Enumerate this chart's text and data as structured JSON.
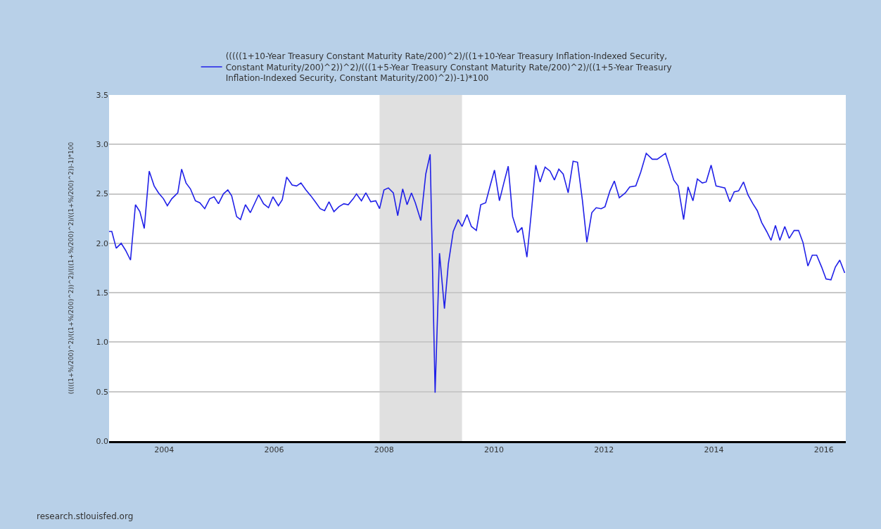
{
  "chart_data": {
    "type": "line",
    "ylabel": "(((((1+%/200)^2)/((1+%/200)^2))^2)/(((1+%/200)^2)/((1+%/200)^2))-1)*100",
    "x": [
      2003.0,
      2003.05,
      2003.13,
      2003.22,
      2003.3,
      2003.39,
      2003.48,
      2003.56,
      2003.64,
      2003.73,
      2003.82,
      2003.9,
      2003.99,
      2004.06,
      2004.14,
      2004.25,
      2004.32,
      2004.4,
      2004.48,
      2004.57,
      2004.65,
      2004.74,
      2004.83,
      2004.91,
      2004.99,
      2005.08,
      2005.16,
      2005.23,
      2005.32,
      2005.39,
      2005.48,
      2005.57,
      2005.72,
      2005.81,
      2005.9,
      2005.98,
      2006.08,
      2006.15,
      2006.23,
      2006.33,
      2006.41,
      2006.49,
      2006.58,
      2006.67,
      2006.75,
      2006.84,
      2006.92,
      2007.0,
      2007.09,
      2007.18,
      2007.27,
      2007.35,
      2007.44,
      2007.5,
      2007.59,
      2007.67,
      2007.76,
      2007.85,
      2007.92,
      2008.0,
      2008.08,
      2008.17,
      2008.25,
      2008.34,
      2008.42,
      2008.5,
      2008.57,
      2008.67,
      2008.76,
      2008.84,
      2008.93,
      2009.01,
      2009.1,
      2009.17,
      2009.26,
      2009.35,
      2009.42,
      2009.51,
      2009.59,
      2009.68,
      2009.76,
      2009.85,
      2009.94,
      2010.01,
      2010.1,
      2010.18,
      2010.26,
      2010.34,
      2010.43,
      2010.51,
      2010.6,
      2010.68,
      2010.76,
      2010.84,
      2010.93,
      2011.02,
      2011.1,
      2011.18,
      2011.26,
      2011.35,
      2011.44,
      2011.52,
      2011.61,
      2011.69,
      2011.78,
      2011.86,
      2011.95,
      2012.02,
      2012.11,
      2012.19,
      2012.28,
      2012.39,
      2012.47,
      2012.58,
      2012.67,
      2012.77,
      2012.88,
      2012.97,
      2013.12,
      2013.2,
      2013.27,
      2013.35,
      2013.45,
      2013.53,
      2013.62,
      2013.7,
      2013.79,
      2013.86,
      2013.95,
      2014.04,
      2014.12,
      2014.2,
      2014.29,
      2014.37,
      2014.45,
      2014.54,
      2014.62,
      2014.71,
      2014.79,
      2014.87,
      2014.96,
      2015.04,
      2015.12,
      2015.2,
      2015.29,
      2015.37,
      2015.46,
      2015.54,
      2015.62,
      2015.71,
      2015.79,
      2015.87,
      2015.96,
      2016.04,
      2016.13,
      2016.21,
      2016.29,
      2016.38
    ],
    "series": [
      {
        "name": "(((((1+10-Year Treasury Constant Maturity Rate/200)^2)/((1+10-Year Treasury Inflation-Indexed Security, Constant Maturity/200)^2))^2)/(((1+5-Year Treasury Constant Maturity Rate/200)^2)/((1+5-Year Treasury Inflation-Indexed Security, Constant Maturity/200)^2))-1)*100",
        "color": "#2020e8",
        "values": [
          2.12,
          2.12,
          1.95,
          2.0,
          1.93,
          1.83,
          2.39,
          2.32,
          2.15,
          2.73,
          2.58,
          2.51,
          2.45,
          2.38,
          2.45,
          2.51,
          2.75,
          2.61,
          2.55,
          2.43,
          2.41,
          2.35,
          2.45,
          2.47,
          2.4,
          2.5,
          2.54,
          2.48,
          2.27,
          2.24,
          2.39,
          2.31,
          2.49,
          2.4,
          2.36,
          2.47,
          2.38,
          2.44,
          2.67,
          2.59,
          2.58,
          2.61,
          2.54,
          2.48,
          2.42,
          2.35,
          2.33,
          2.42,
          2.32,
          2.37,
          2.4,
          2.39,
          2.45,
          2.5,
          2.43,
          2.51,
          2.42,
          2.43,
          2.35,
          2.54,
          2.56,
          2.51,
          2.28,
          2.55,
          2.39,
          2.51,
          2.41,
          2.23,
          2.7,
          2.9,
          0.49,
          1.9,
          1.34,
          1.79,
          2.12,
          2.24,
          2.17,
          2.29,
          2.17,
          2.13,
          2.39,
          2.41,
          2.6,
          2.74,
          2.43,
          2.61,
          2.78,
          2.27,
          2.11,
          2.16,
          1.86,
          2.31,
          2.79,
          2.62,
          2.77,
          2.73,
          2.64,
          2.75,
          2.7,
          2.51,
          2.83,
          2.82,
          2.43,
          2.01,
          2.31,
          2.36,
          2.35,
          2.37,
          2.53,
          2.63,
          2.46,
          2.51,
          2.57,
          2.58,
          2.72,
          2.91,
          2.85,
          2.85,
          2.91,
          2.77,
          2.64,
          2.58,
          2.24,
          2.57,
          2.43,
          2.65,
          2.61,
          2.62,
          2.79,
          2.58,
          2.57,
          2.56,
          2.42,
          2.52,
          2.53,
          2.62,
          2.49,
          2.4,
          2.33,
          2.21,
          2.12,
          2.03,
          2.18,
          2.03,
          2.17,
          2.05,
          2.13,
          2.13,
          2.01,
          1.77,
          1.88,
          1.88,
          1.76,
          1.64,
          1.63,
          1.76,
          1.83,
          1.7
        ]
      }
    ],
    "xlim": [
      2003.0,
      2016.4
    ],
    "xticks": [
      2004,
      2006,
      2008,
      2010,
      2012,
      2014,
      2016
    ],
    "ylim": [
      0,
      3.5
    ],
    "yticks": [
      {
        "value": 0,
        "label": "0.0"
      },
      0.5,
      {
        "value": 1,
        "label": "1.0"
      },
      1.5,
      {
        "value": 2,
        "label": "2.0"
      },
      2.5,
      {
        "value": 3,
        "label": "3.0"
      },
      3.5
    ],
    "bands": [
      {
        "axis": "x",
        "from": 2007.92,
        "to": 2009.42,
        "color": "#e0e0e0"
      }
    ],
    "annotations": [
      "research.stlouisfed.org"
    ],
    "grid": "y",
    "legend": "top",
    "marker": "none",
    "line_style": "solid"
  }
}
